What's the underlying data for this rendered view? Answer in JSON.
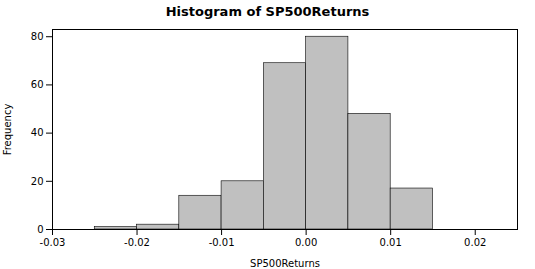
{
  "chart_data": {
    "type": "histogram",
    "title": "Histogram of SP500Returns",
    "xlabel": "SP500Returns",
    "ylabel": "Frequency",
    "bins": [
      -0.025,
      -0.02,
      -0.015,
      -0.01,
      -0.005,
      0.0,
      0.005,
      0.01,
      0.015
    ],
    "values": [
      1,
      2,
      14,
      20,
      69,
      80,
      48,
      17
    ],
    "color": "#c0c0c0",
    "xlim": [
      -0.03,
      0.025
    ],
    "xticks": [
      -0.03,
      -0.02,
      -0.01,
      {
        "value": 0,
        "label": "0.00"
      },
      0.01,
      0.02
    ],
    "ylim": [
      0,
      83
    ],
    "yticks": [
      0,
      20,
      40,
      60,
      80
    ]
  }
}
